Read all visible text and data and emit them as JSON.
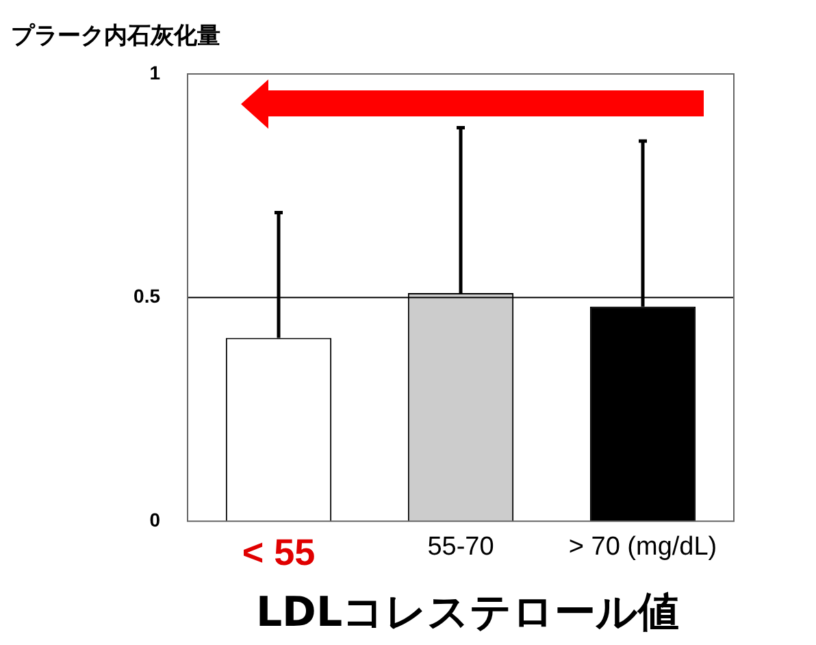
{
  "chart_data": {
    "type": "bar",
    "ylabel": "プラーク内石灰化量",
    "xlabel": "LDLコレステロール値",
    "categories": [
      "< 55",
      "55-70",
      "> 70 (mg/dL)"
    ],
    "values": [
      0.41,
      0.51,
      0.48
    ],
    "colors": [
      "#ffffff",
      "#cccccc",
      "#000000"
    ],
    "errors": [
      [
        0.41,
        0.69
      ],
      [
        0.51,
        0.88
      ],
      [
        0.48,
        0.85
      ]
    ],
    "ylim": [
      0,
      1
    ],
    "yticks": [
      0,
      0.5,
      1
    ],
    "grid": false,
    "legend": false,
    "ref_lines": [
      {
        "axis": "y",
        "value": 0.5,
        "color": "#000000"
      }
    ]
  }
}
